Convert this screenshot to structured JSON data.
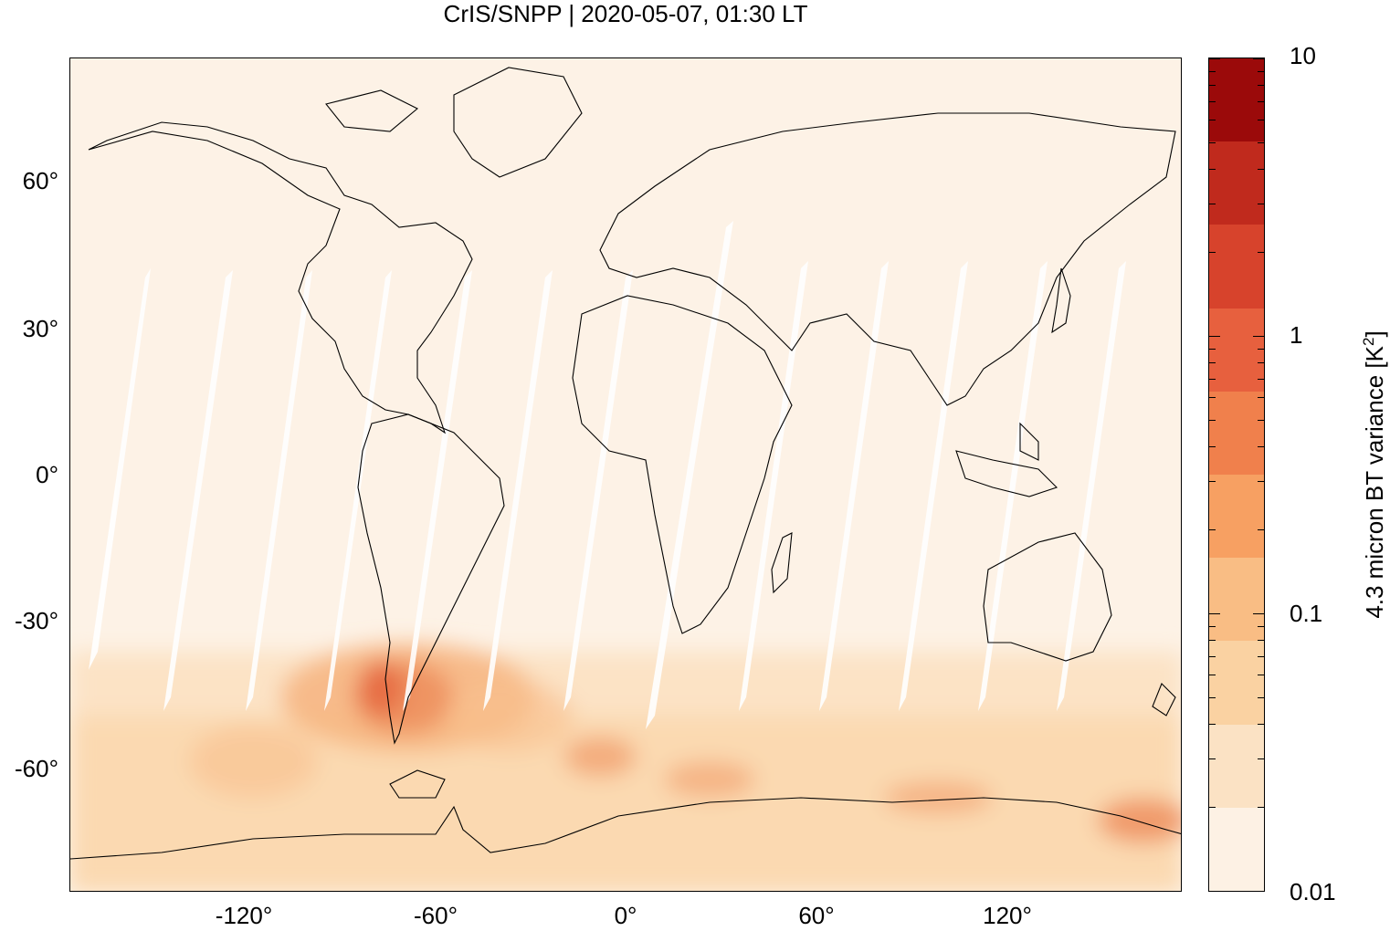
{
  "title": "CrIS/SNPP | 2020-05-07, 01:30 LT",
  "map": {
    "projection": "equirectangular",
    "lon_range": [
      -180,
      180
    ],
    "lat_range": [
      -90,
      90
    ],
    "y_ticks": [
      "60°",
      "30°",
      "0°",
      "-30°",
      "-60°"
    ],
    "x_ticks": [
      "-120°",
      "-60°",
      "0°",
      "60°",
      "120°"
    ],
    "background_color": "#fdf2e6",
    "swath_gap_color": "#ffffff"
  },
  "colorbar": {
    "title": "4.3 micron BT variance [K",
    "title_sup": "2",
    "title_end": "]",
    "scale": "log",
    "range": [
      0.01,
      10
    ],
    "tick_labels": [
      "10",
      "1",
      "0.1",
      "0.01"
    ],
    "colors": [
      "#fdf1e4",
      "#fbe2c4",
      "#fad2a2",
      "#f9bd84",
      "#f7a062",
      "#f0804c",
      "#e7603e",
      "#d7432c",
      "#c02a1d",
      "#9b0a0a"
    ]
  }
}
